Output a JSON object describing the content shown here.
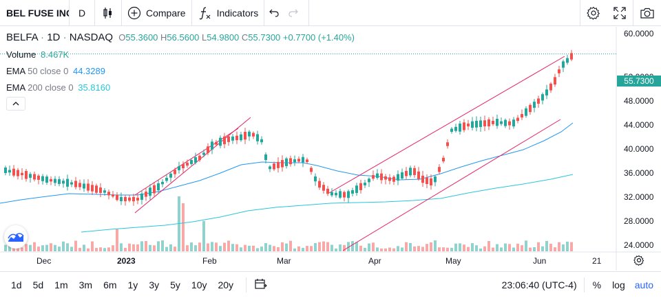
{
  "toolbar": {
    "symbol": "BEL FUSE INC",
    "interval": "D",
    "compare_label": "Compare",
    "indicators_label": "Indicators"
  },
  "legend": {
    "ticker": "BELFA",
    "interval": "1D",
    "exchange": "NASDAQ",
    "o_label": "O",
    "o": "55.3600",
    "h_label": "H",
    "h": "56.5600",
    "l_label": "L",
    "l": "54.9800",
    "c_label": "C",
    "c": "55.7300",
    "change": "+0.7700 (+1.40%)",
    "volume_label": "Volume",
    "volume": "8.467K",
    "ema50_label": "EMA",
    "ema50_params": "50 close 0",
    "ema50_value": "44.3289",
    "ema200_label": "EMA",
    "ema200_params": "200 close 0",
    "ema200_value": "35.8160"
  },
  "price_axis": [
    "60.0000",
    "52.0000",
    "48.0000",
    "44.0000",
    "40.0000",
    "36.0000",
    "32.0000",
    "28.0000",
    "24.0000"
  ],
  "last_price": "55.7300",
  "time_axis": [
    "Dec",
    "2023",
    "Feb",
    "Mar",
    "Apr",
    "May",
    "Jun",
    "21"
  ],
  "bottom": {
    "ranges": [
      "1d",
      "5d",
      "1m",
      "3m",
      "6m",
      "1y",
      "3y",
      "5y",
      "10y",
      "20y"
    ],
    "time": "23:06:40 (UTC-4)",
    "percent": "%",
    "log": "log",
    "auto": "auto"
  },
  "colors": {
    "up": "#26a69a",
    "down": "#ef5350",
    "ema50": "#2196f3",
    "ema200": "#26c6da",
    "channel": "#e91e63",
    "accent": "#2962ff"
  }
}
